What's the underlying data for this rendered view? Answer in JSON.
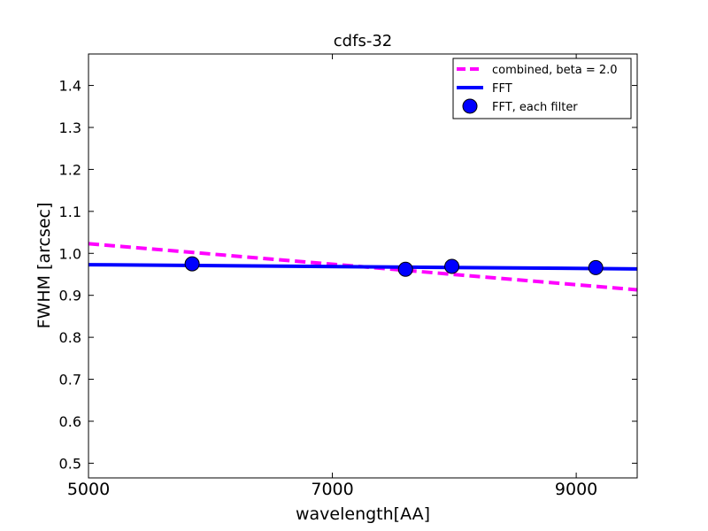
{
  "chart_data": {
    "type": "line",
    "title": "cdfs-32",
    "xlabel": "wavelength[AA]",
    "ylabel": "FWHM [arcsec]",
    "xlim": [
      5000,
      9500
    ],
    "ylim": [
      0.465,
      1.475
    ],
    "x_ticks": [
      5000,
      7000,
      9000
    ],
    "y_ticks": [
      0.5,
      0.6,
      0.7,
      0.8,
      0.9,
      1.0,
      1.1,
      1.2,
      1.3,
      1.4
    ],
    "grid": false,
    "legend_position": "top-right",
    "series": [
      {
        "name": "combined, beta = 2.0",
        "style": "dashed-line",
        "color": "#ff00ff",
        "x": [
          5000,
          9500
        ],
        "y": [
          1.023,
          0.913
        ]
      },
      {
        "name": "FFT",
        "style": "solid-line",
        "color": "#0000ff",
        "x": [
          5000,
          9500
        ],
        "y": [
          0.973,
          0.963
        ]
      },
      {
        "name": "FFT, each filter",
        "style": "markers",
        "color": "#0000ff",
        "x": [
          5850,
          7600,
          7980,
          9160
        ],
        "y": [
          0.975,
          0.962,
          0.969,
          0.966
        ]
      }
    ]
  }
}
